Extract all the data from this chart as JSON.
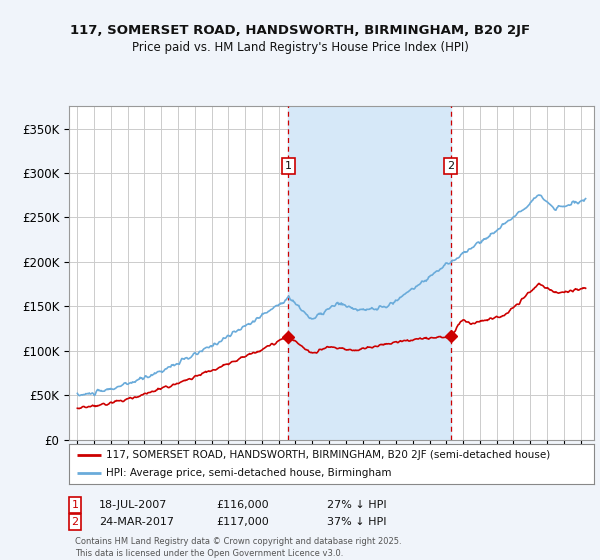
{
  "title_line1": "117, SOMERSET ROAD, HANDSWORTH, BIRMINGHAM, B20 2JF",
  "title_line2": "Price paid vs. HM Land Registry's House Price Index (HPI)",
  "background_color": "#f0f4fa",
  "plot_bg_color": "#ffffff",
  "shade_color": "#d6e8f8",
  "grid_color": "#cccccc",
  "red_color": "#cc0000",
  "blue_color": "#6aabda",
  "vline_color": "#cc0000",
  "ylim": [
    0,
    375000
  ],
  "yticks": [
    0,
    50000,
    100000,
    150000,
    200000,
    250000,
    300000,
    350000
  ],
  "ytick_labels": [
    "£0",
    "£50K",
    "£100K",
    "£150K",
    "£200K",
    "£250K",
    "£300K",
    "£350K"
  ],
  "sale1_price": 116000,
  "sale1_date_str": "18-JUL-2007",
  "sale1_amount": "£116,000",
  "sale1_note": "27% ↓ HPI",
  "sale2_price": 117000,
  "sale2_date_str": "24-MAR-2017",
  "sale2_amount": "£117,000",
  "sale2_note": "37% ↓ HPI",
  "legend_line1": "117, SOMERSET ROAD, HANDSWORTH, BIRMINGHAM, B20 2JF (semi-detached house)",
  "legend_line2": "HPI: Average price, semi-detached house, Birmingham",
  "footer": "Contains HM Land Registry data © Crown copyright and database right 2025.\nThis data is licensed under the Open Government Licence v3.0.",
  "xlim_start": 1994.5,
  "xlim_end": 2025.8
}
